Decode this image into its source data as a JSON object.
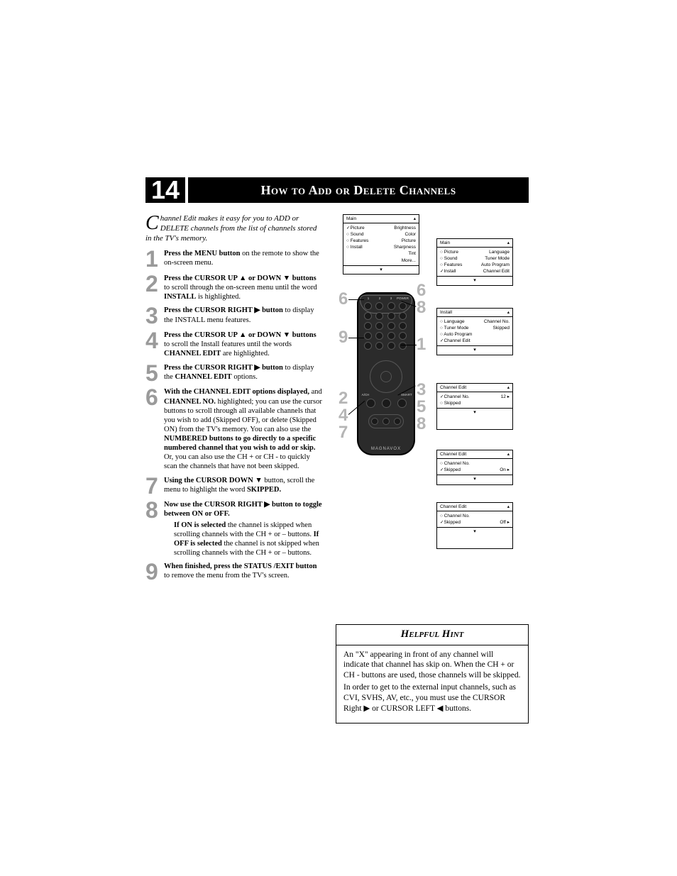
{
  "page_number": "14",
  "title": "How to Add or Delete Channels",
  "intro": {
    "dropcap": "C",
    "text": "hannel Edit makes it easy for you to ADD or DELETE channels from the list of channels stored in the TV's memory."
  },
  "steps": [
    {
      "n": "1",
      "html": "<b>Press the MENU button</b> on the remote to show the on-screen menu."
    },
    {
      "n": "2",
      "html": "<b>Press the CURSOR UP ▲ or DOWN ▼ buttons</b> to scroll through the on-screen menu until the word <b>INSTALL</b> is highlighted."
    },
    {
      "n": "3",
      "html": "<b>Press the CURSOR RIGHT ▶ button</b> to display the INSTALL menu features."
    },
    {
      "n": "4",
      "html": "<b>Press the CURSOR UP ▲ or DOWN ▼ buttons</b> to scroll the Install features until the words <b>CHANNEL EDIT</b> are highlighted."
    },
    {
      "n": "5",
      "html": "<b>Press the CURSOR RIGHT ▶ button</b> to display the <b>CHANNEL EDIT</b> options."
    },
    {
      "n": "6",
      "html": "<b>With the CHANNEL EDIT options displayed,</b> and <b>CHANNEL NO.</b> highlighted; you can use the cursor buttons  to scroll through all available channels that you wish to add (Skipped OFF), or delete (Skipped ON) from the TV's memory.  You can also use the <b>NUMBERED buttons to go directly to a specific numbered channel that you wish to add or skip.</b> Or, you can also use the CH + or CH - to quickly scan the channels that have not been skipped."
    },
    {
      "n": "7",
      "html": "<b>Using the CURSOR DOWN ▼</b> button, scroll the menu to highlight the word <b>SKIPPED.</b>"
    },
    {
      "n": "8",
      "html": "<b>Now use the CURSOR RIGHT ▶ button to toggle between ON or OFF.</b>",
      "sub": "<b>If ON is selected</b> the channel is skipped when scrolling channels with the CH + or – buttons. <b>If OFF is selected</b> the channel is not skipped when scrolling channels with the CH + or – buttons."
    },
    {
      "n": "9",
      "html": "<b>When finished, press the STATUS /EXIT button</b> to remove the menu from the TV's screen."
    }
  ],
  "hint": {
    "title": "Helpful Hint",
    "body": "An \"X\" appearing in front of any channel will indicate that channel has skip on. When the CH + or CH - buttons are used, those channels will be skipped.\nIn order to get to the external input channels, such as CVI, SVHS, AV, etc., you must use the CURSOR Right ▶ or CURSOR LEFT ◀ buttons."
  },
  "osd": {
    "main1": {
      "title": "Main",
      "rows": [
        [
          "✓Picture",
          "▸",
          "Brightness"
        ],
        [
          "○ Sound",
          "",
          "Color"
        ],
        [
          "○ Features",
          "",
          "Picture"
        ],
        [
          "○ Install",
          "",
          "Sharpness"
        ],
        [
          "",
          "",
          "Tint"
        ],
        [
          "",
          "",
          "More..."
        ]
      ]
    },
    "main2": {
      "title": "Main",
      "rows": [
        [
          "○ Picture",
          "",
          "Language"
        ],
        [
          "○ Sound",
          "",
          "Tuner Mode"
        ],
        [
          "○ Features",
          "",
          "Auto Program"
        ],
        [
          "✓Install",
          "▸",
          "Channel Edit"
        ]
      ]
    },
    "install": {
      "title": "Install",
      "rows": [
        [
          "○ Language",
          "",
          "Channel No."
        ],
        [
          "○ Tuner Mode",
          "",
          "Skipped"
        ],
        [
          "○ Auto Program",
          "",
          ""
        ],
        [
          "✓Channel Edit",
          "▸",
          ""
        ]
      ]
    },
    "ce1": {
      "title": "Channel Edit",
      "rows": [
        [
          "✓Channel No.",
          "",
          "12 ▸"
        ],
        [
          "○ Skipped",
          "",
          ""
        ]
      ]
    },
    "ce2": {
      "title": "Channel Edit",
      "rows": [
        [
          "○ Channel No.",
          "",
          ""
        ],
        [
          "✓Skipped",
          "",
          "On ▸"
        ]
      ]
    },
    "ce3": {
      "title": "Channel Edit",
      "rows": [
        [
          "○ Channel No.",
          "",
          ""
        ],
        [
          "✓Skipped",
          "",
          "Off ▸"
        ]
      ]
    }
  },
  "callouts_left": [
    "6",
    "9",
    "2",
    "4",
    "7"
  ],
  "callouts_right": [
    "6",
    "8",
    "1",
    "3",
    "5",
    "8"
  ],
  "remote": {
    "brand": "MAGNAVOX",
    "num_labels": [
      "1",
      "2",
      "3",
      "POWER"
    ],
    "mid_labels": [
      "A/CH",
      "SMART"
    ],
    "side_labels": [
      "CH",
      "VOL",
      "AV"
    ]
  },
  "colors": {
    "header_bg": "#000000",
    "header_fg": "#ffffff",
    "step_num": "#9a9a9a",
    "callout": "#b5b5b5",
    "remote_body": "#2b2b2b"
  }
}
